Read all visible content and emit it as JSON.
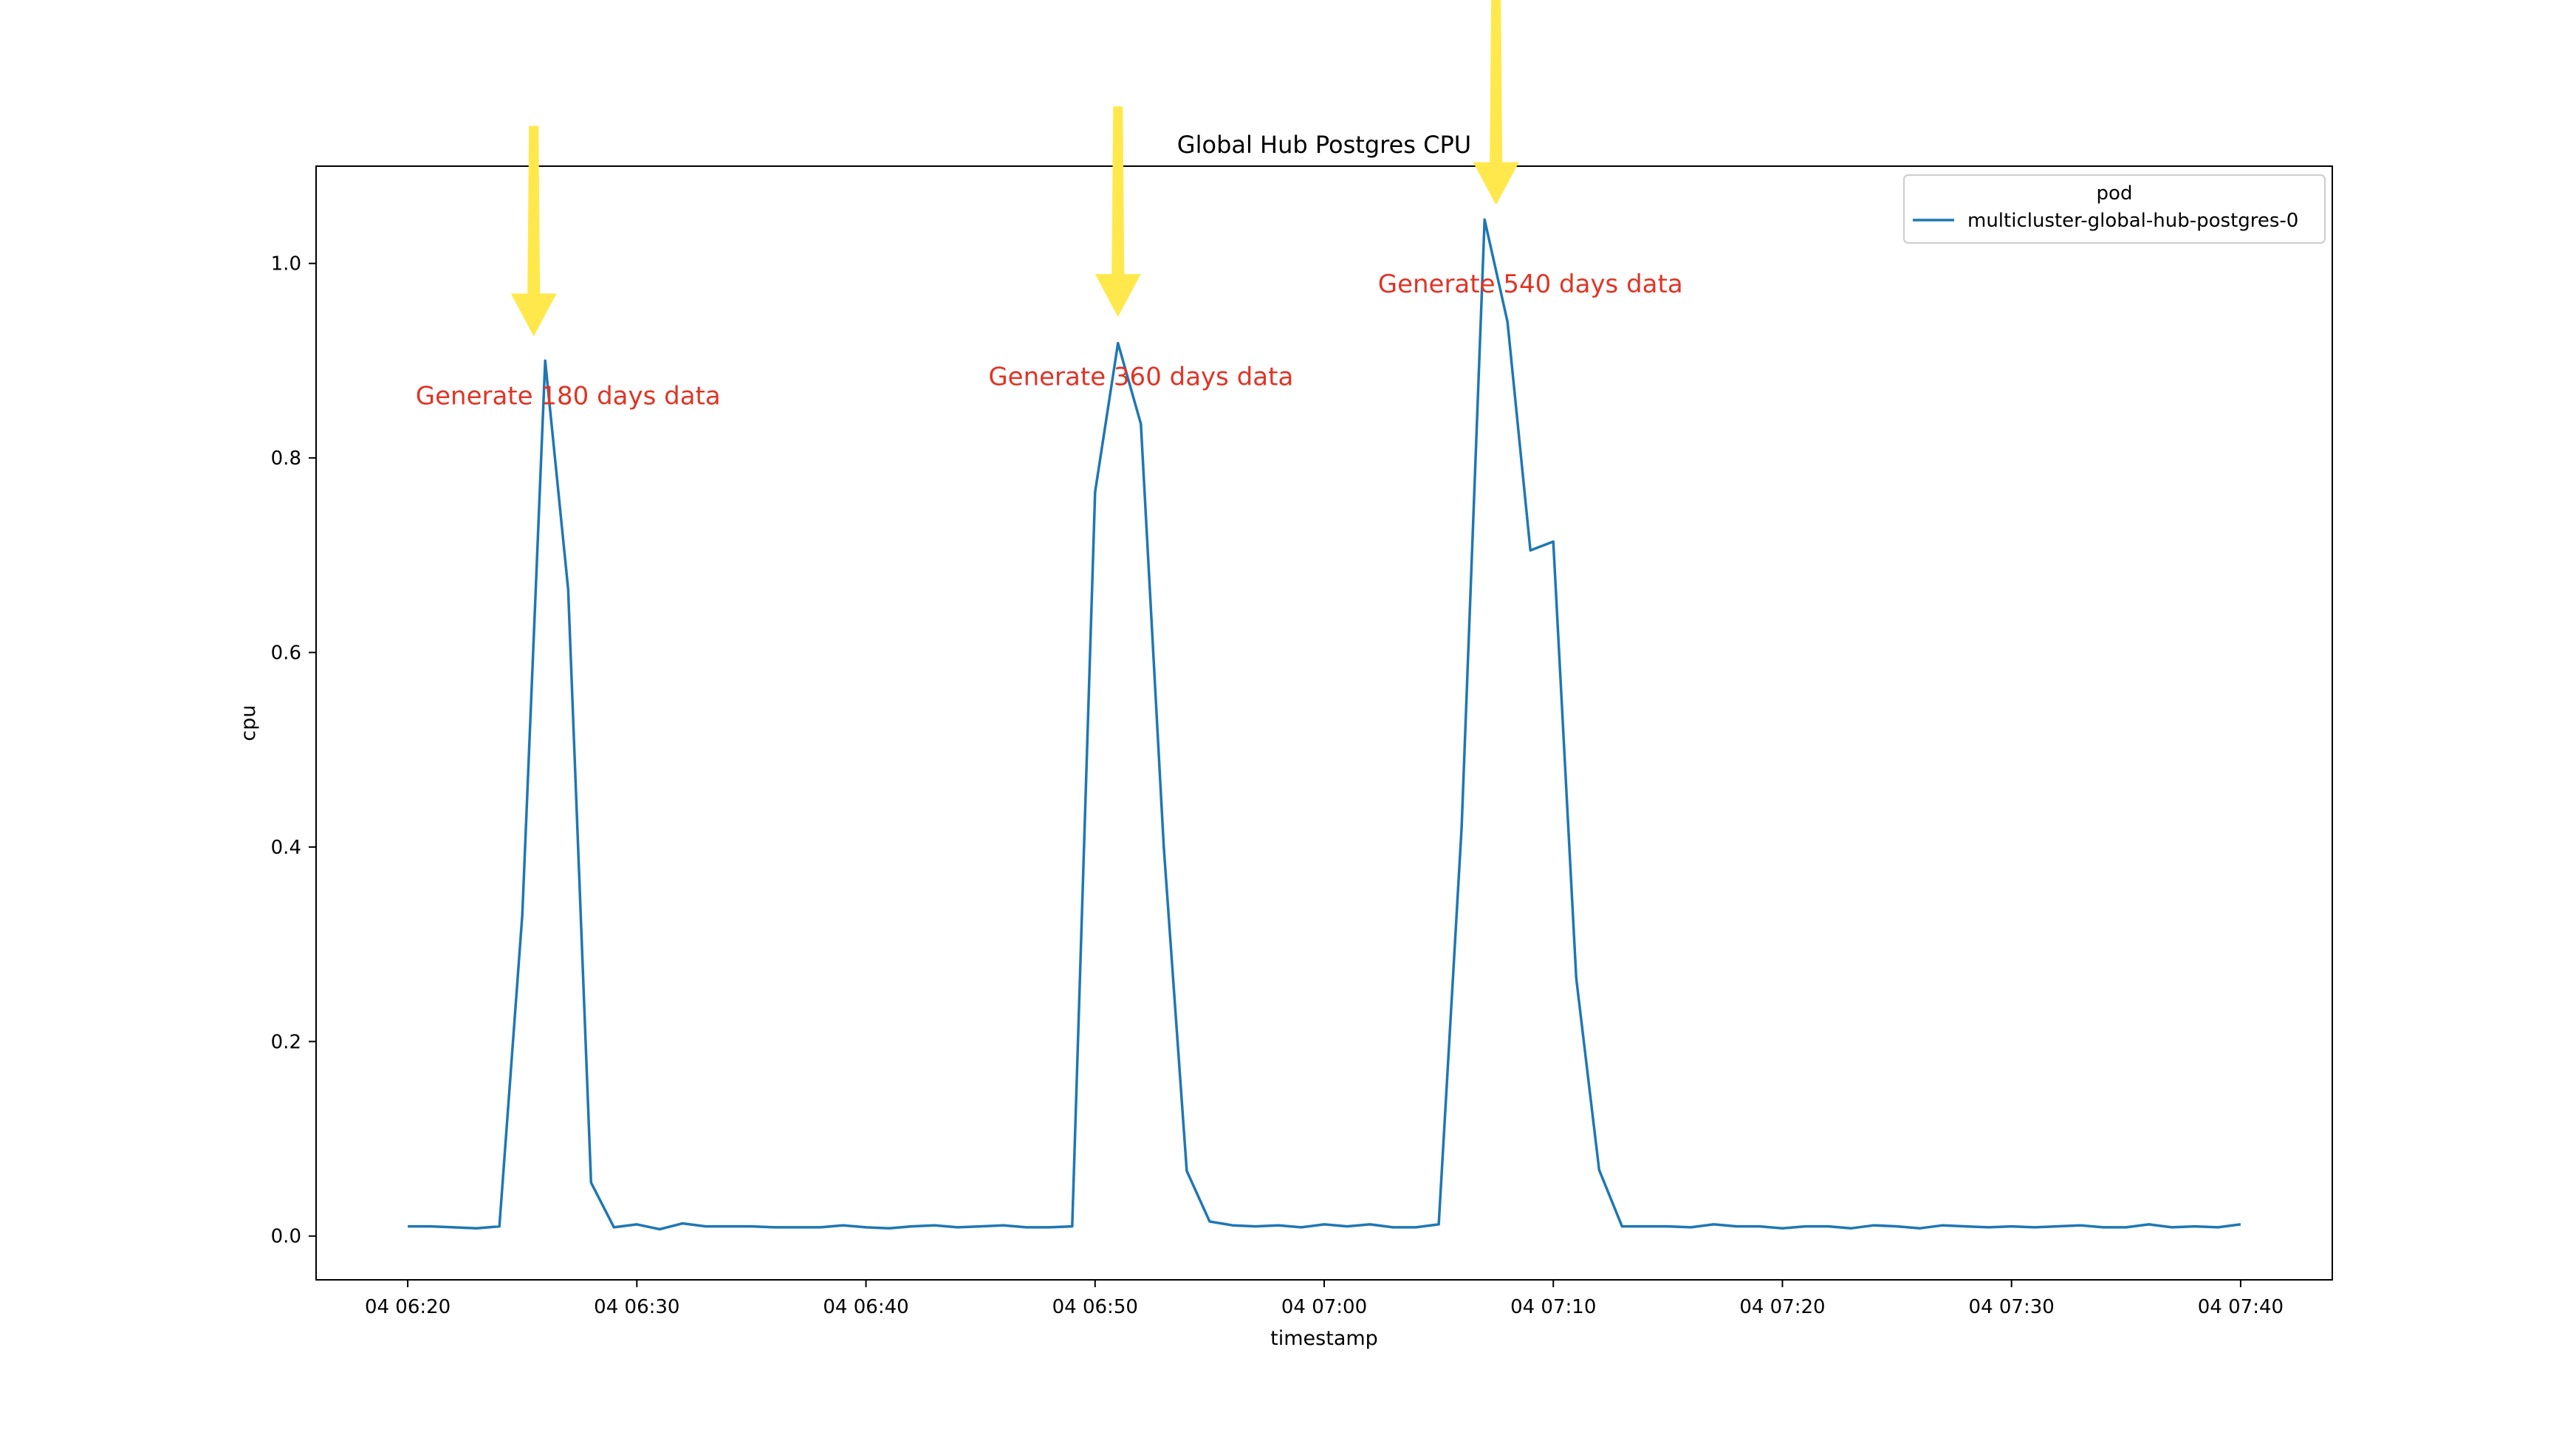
{
  "chart_data": {
    "type": "line",
    "title": "Global Hub Postgres CPU",
    "xlabel": "timestamp",
    "ylabel": "cpu",
    "x_ticks": [
      "04 06:20",
      "04 06:30",
      "04 06:40",
      "04 06:50",
      "04 07:00",
      "04 07:10",
      "04 07:20",
      "04 07:30",
      "04 07:40"
    ],
    "y_ticks": [
      "0.0",
      "0.2",
      "0.4",
      "0.6",
      "0.8",
      "1.0"
    ],
    "xlim": [
      "06:16",
      "07:44"
    ],
    "ylim": [
      -0.045,
      1.1
    ],
    "grid": false,
    "legend": {
      "title": "pod",
      "location": "top-right",
      "entries": [
        "multicluster-global-hub-postgres-0"
      ]
    },
    "series": [
      {
        "name": "multicluster-global-hub-postgres-0",
        "color": "#1f77b4",
        "x": [
          "06:20",
          "06:21",
          "06:22",
          "06:23",
          "06:24",
          "06:25",
          "06:26",
          "06:27",
          "06:28",
          "06:29",
          "06:30",
          "06:31",
          "06:32",
          "06:33",
          "06:34",
          "06:35",
          "06:36",
          "06:37",
          "06:38",
          "06:39",
          "06:40",
          "06:41",
          "06:42",
          "06:43",
          "06:44",
          "06:45",
          "06:46",
          "06:47",
          "06:48",
          "06:49",
          "06:50",
          "06:51",
          "06:52",
          "06:53",
          "06:54",
          "06:55",
          "06:56",
          "06:57",
          "06:58",
          "06:59",
          "07:00",
          "07:01",
          "07:02",
          "07:03",
          "07:04",
          "07:05",
          "07:06",
          "07:07",
          "07:08",
          "07:09",
          "07:10",
          "07:11",
          "07:12",
          "07:13",
          "07:14",
          "07:15",
          "07:16",
          "07:17",
          "07:18",
          "07:19",
          "07:20",
          "07:21",
          "07:22",
          "07:23",
          "07:24",
          "07:25",
          "07:26",
          "07:27",
          "07:28",
          "07:29",
          "07:30",
          "07:31",
          "07:32",
          "07:33",
          "07:34",
          "07:35",
          "07:36",
          "07:37",
          "07:38",
          "07:39",
          "07:40"
        ],
        "y": [
          0.01,
          0.01,
          0.009,
          0.008,
          0.01,
          0.33,
          0.9,
          0.665,
          0.055,
          0.009,
          0.012,
          0.007,
          0.013,
          0.01,
          0.01,
          0.01,
          0.009,
          0.009,
          0.009,
          0.011,
          0.009,
          0.008,
          0.01,
          0.011,
          0.009,
          0.01,
          0.011,
          0.009,
          0.009,
          0.01,
          0.765,
          0.918,
          0.835,
          0.4,
          0.067,
          0.015,
          0.011,
          0.01,
          0.011,
          0.009,
          0.012,
          0.01,
          0.012,
          0.009,
          0.009,
          0.012,
          0.42,
          1.045,
          0.94,
          0.705,
          0.714,
          0.265,
          0.068,
          0.01,
          0.01,
          0.01,
          0.009,
          0.012,
          0.01,
          0.01,
          0.008,
          0.01,
          0.01,
          0.008,
          0.011,
          0.01,
          0.008,
          0.011,
          0.01,
          0.009,
          0.01,
          0.009,
          0.01,
          0.011,
          0.009,
          0.009,
          0.012,
          0.009,
          0.01,
          0.009,
          0.012
        ]
      }
    ],
    "annotations": [
      {
        "text": "Generate 180 days data",
        "color": "#e03426",
        "x": "06:27",
        "y": 0.855
      },
      {
        "text": "Generate 360 days data",
        "color": "#e03426",
        "x": "06:52",
        "y": 0.875
      },
      {
        "text": "Generate 540 days data",
        "color": "#e03426",
        "x": "07:09",
        "y": 0.97
      }
    ],
    "arrows": [
      {
        "color": "#ffe84c",
        "x": "06:25.5",
        "y_tip": 0.925
      },
      {
        "color": "#ffe84c",
        "x": "06:51",
        "y_tip": 0.945
      },
      {
        "color": "#ffe84c",
        "x": "07:07.5",
        "y_tip": 1.06
      }
    ]
  }
}
